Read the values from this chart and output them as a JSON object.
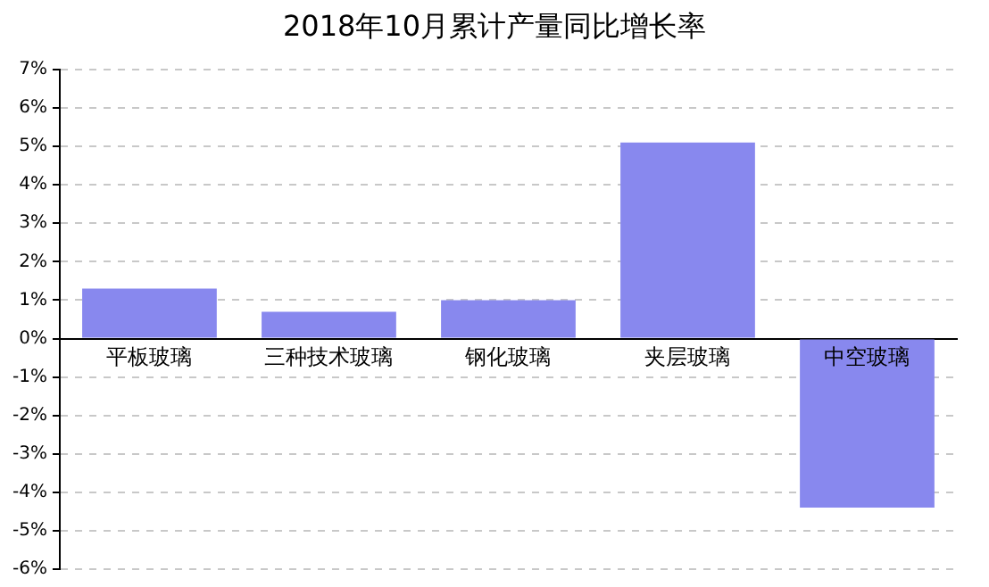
{
  "chart_data": {
    "type": "bar",
    "title": "2018年10月累计产量同比增长率",
    "categories": [
      "平板玻璃",
      "三种技术玻璃",
      "钢化玻璃",
      "夹层玻璃",
      "中空玻璃"
    ],
    "values": [
      1.3,
      0.7,
      1.0,
      5.1,
      -4.4
    ],
    "color": "#8888ee",
    "ylim": [
      -6,
      7
    ],
    "yticks": [
      {
        "value": -6,
        "label": "-6%"
      },
      {
        "value": -5,
        "label": "-5%"
      },
      {
        "value": -4,
        "label": "-4%"
      },
      {
        "value": -3,
        "label": "-3%"
      },
      {
        "value": -2,
        "label": "-2%"
      },
      {
        "value": -1,
        "label": "-1%"
      },
      {
        "value": 0,
        "label": "0%"
      },
      {
        "value": 1,
        "label": "1%"
      },
      {
        "value": 2,
        "label": "2%"
      },
      {
        "value": 3,
        "label": "3%"
      },
      {
        "value": 4,
        "label": "4%"
      },
      {
        "value": 5,
        "label": "5%"
      },
      {
        "value": 6,
        "label": "6%"
      },
      {
        "value": 7,
        "label": "7%"
      }
    ],
    "grid": "y"
  }
}
